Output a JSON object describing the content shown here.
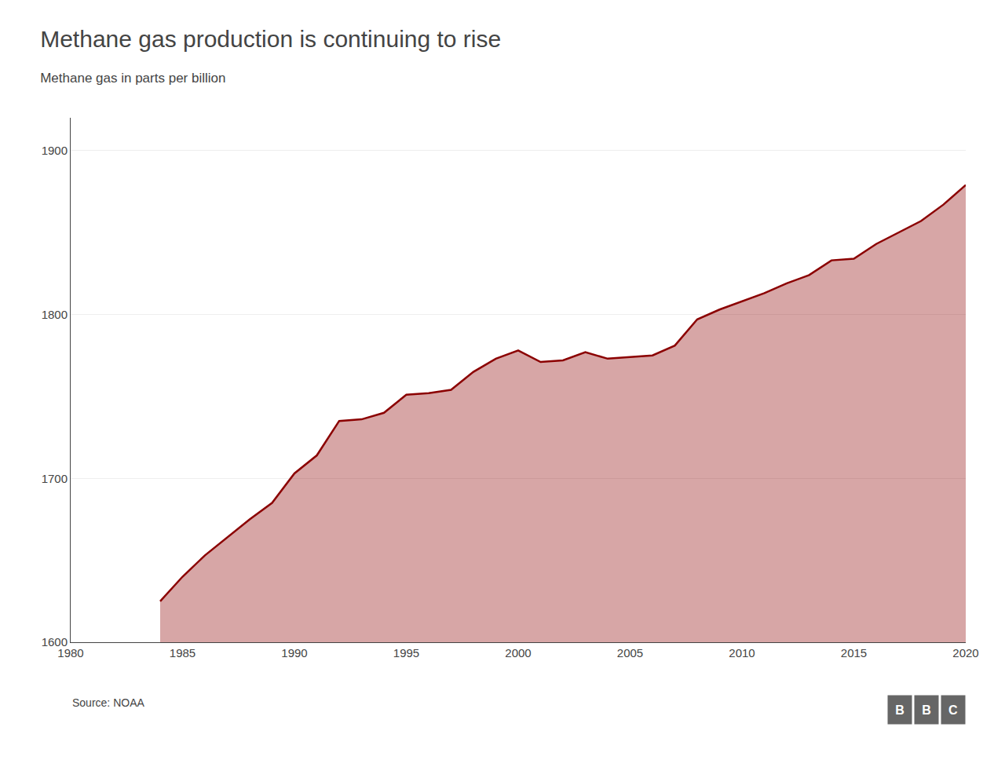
{
  "chart_data": {
    "type": "area",
    "title": "Methane gas production is continuing to rise",
    "subtitle": "Methane gas in parts per billion",
    "annotations": [
      "Source: NOAA",
      "B",
      "B",
      "C"
    ],
    "x": [
      1984,
      1985,
      1986,
      1987,
      1988,
      1989,
      1990,
      1991,
      1992,
      1993,
      1994,
      1995,
      1996,
      1997,
      1998,
      1999,
      2000,
      2001,
      2002,
      2003,
      2004,
      2005,
      2006,
      2007,
      2008,
      2009,
      2010,
      2011,
      2012,
      2013,
      2014,
      2015,
      2016,
      2017,
      2018,
      2019,
      2020
    ],
    "values": [
      1625,
      1640,
      1653,
      1664,
      1675,
      1685,
      1703,
      1714,
      1735,
      1736,
      1740,
      1751,
      1752,
      1754,
      1765,
      1773,
      1778,
      1771,
      1772,
      1777,
      1773,
      1774,
      1775,
      1781,
      1797,
      1803,
      1808,
      1813,
      1819,
      1824,
      1833,
      1834,
      1843,
      1850,
      1857,
      1867,
      1879
    ],
    "color": "#8B0000",
    "xlim": [
      1980,
      2020
    ],
    "xticks": [
      1980,
      1985,
      1990,
      1995,
      2000,
      2005,
      2010,
      2015,
      2020
    ],
    "ylim": [
      1600,
      1920
    ],
    "yticks": [
      1600,
      1700,
      1800,
      1900
    ],
    "grid": true
  }
}
